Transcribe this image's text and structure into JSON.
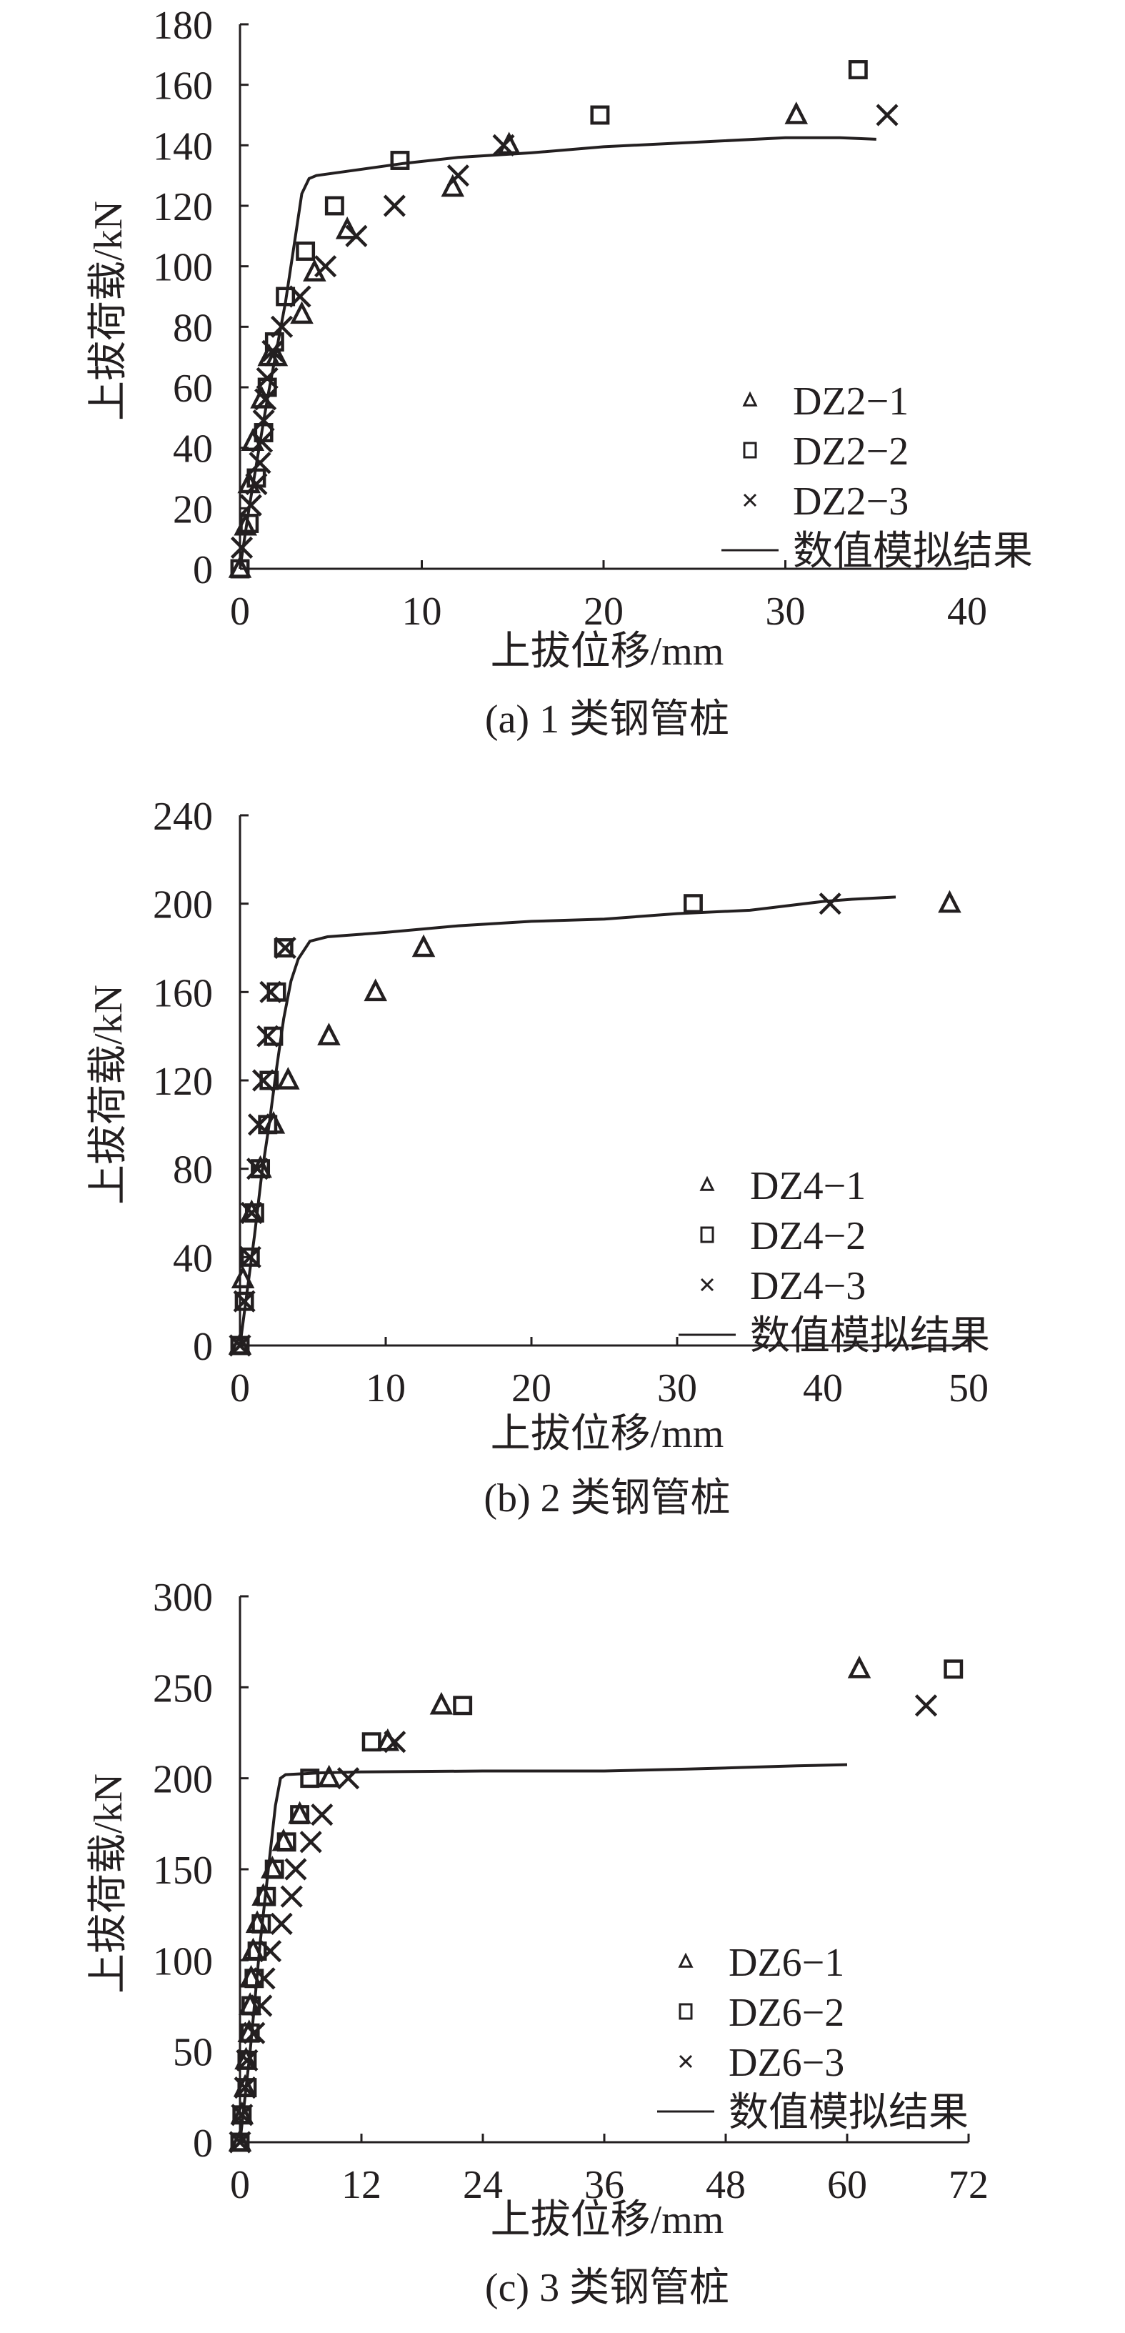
{
  "colors": {
    "ink": "#231f20",
    "background": "#ffffff"
  },
  "chart_data": [
    {
      "type": "scatter",
      "panel_label": "(a) 1 类钢管桩",
      "title": "",
      "xlabel": "上拔位移/mm",
      "ylabel": "上拔荷载/kN",
      "xlim": [
        0,
        40
      ],
      "ylim": [
        0,
        180
      ],
      "xticks": [
        0,
        10,
        20,
        30,
        40
      ],
      "yticks": [
        0,
        20,
        40,
        60,
        80,
        100,
        120,
        140,
        160,
        180
      ],
      "grid": false,
      "legend_position": "lower right",
      "series": [
        {
          "name": "DZ2-1",
          "marker": "triangle",
          "points": [
            [
              0,
              0
            ],
            [
              0.3,
              14
            ],
            [
              0.5,
              28
            ],
            [
              0.7,
              42
            ],
            [
              1.2,
              56
            ],
            [
              1.6,
              70
            ],
            [
              2.0,
              70
            ],
            [
              3.4,
              84
            ],
            [
              4.1,
              98
            ],
            [
              5.9,
              112
            ],
            [
              11.7,
              126
            ],
            [
              14.8,
              140
            ],
            [
              30.6,
              150
            ]
          ]
        },
        {
          "name": "DZ2-2",
          "marker": "square",
          "points": [
            [
              0,
              0
            ],
            [
              0.5,
              15
            ],
            [
              0.9,
              30
            ],
            [
              1.3,
              45
            ],
            [
              1.5,
              60
            ],
            [
              1.9,
              75
            ],
            [
              2.5,
              90
            ],
            [
              3.6,
              105
            ],
            [
              5.2,
              120
            ],
            [
              8.8,
              135
            ],
            [
              19.8,
              150
            ],
            [
              34.0,
              165
            ]
          ]
        },
        {
          "name": "DZ2-3",
          "marker": "x",
          "points": [
            [
              0.1,
              7
            ],
            [
              0.6,
              21
            ],
            [
              0.9,
              28
            ],
            [
              1.1,
              35
            ],
            [
              1.2,
              42
            ],
            [
              1.3,
              49
            ],
            [
              1.4,
              56
            ],
            [
              1.5,
              63
            ],
            [
              1.8,
              72
            ],
            [
              2.3,
              80
            ],
            [
              3.3,
              90
            ],
            [
              4.7,
              100
            ],
            [
              6.4,
              110
            ],
            [
              8.5,
              120
            ],
            [
              12.0,
              130
            ],
            [
              14.5,
              140
            ],
            [
              35.6,
              150
            ]
          ]
        },
        {
          "name": "数值模拟结果",
          "marker": "line",
          "points": [
            [
              0,
              0
            ],
            [
              0.5,
              20
            ],
            [
              1.0,
              38
            ],
            [
              1.5,
              56
            ],
            [
              2.0,
              72
            ],
            [
              2.5,
              88
            ],
            [
              3.0,
              108
            ],
            [
              3.4,
              124
            ],
            [
              3.8,
              129
            ],
            [
              4.2,
              130
            ],
            [
              6,
              131.5
            ],
            [
              9,
              134
            ],
            [
              12,
              136
            ],
            [
              16,
              137.5
            ],
            [
              20,
              139.5
            ],
            [
              25,
              141
            ],
            [
              30,
              142.5
            ],
            [
              33,
              142.5
            ],
            [
              35,
              142
            ]
          ]
        }
      ]
    },
    {
      "type": "scatter",
      "panel_label": "(b) 2 类钢管桩",
      "title": "",
      "xlabel": "上拔位移/mm",
      "ylabel": "上拔荷载/kN",
      "xlim": [
        0,
        50
      ],
      "ylim": [
        0,
        240
      ],
      "xticks": [
        0,
        10,
        20,
        30,
        40,
        50
      ],
      "yticks": [
        0,
        40,
        80,
        120,
        160,
        200,
        240
      ],
      "grid": false,
      "legend_position": "lower right",
      "series": [
        {
          "name": "DZ4-1",
          "marker": "triangle",
          "points": [
            [
              0,
              0
            ],
            [
              0.2,
              30
            ],
            [
              0.8,
              60
            ],
            [
              1.4,
              80
            ],
            [
              2.3,
              100
            ],
            [
              3.3,
              120
            ],
            [
              6.1,
              140
            ],
            [
              9.3,
              160
            ],
            [
              12.6,
              180
            ],
            [
              48.7,
              200
            ]
          ]
        },
        {
          "name": "DZ4-2",
          "marker": "square",
          "points": [
            [
              0,
              0
            ],
            [
              0.3,
              20
            ],
            [
              0.7,
              40
            ],
            [
              1.0,
              60
            ],
            [
              1.4,
              80
            ],
            [
              1.9,
              100
            ],
            [
              2.0,
              120
            ],
            [
              2.3,
              140
            ],
            [
              2.5,
              160
            ],
            [
              3.0,
              180
            ],
            [
              31.1,
              200
            ]
          ]
        },
        {
          "name": "DZ4-3",
          "marker": "x",
          "points": [
            [
              0,
              0
            ],
            [
              0.3,
              20
            ],
            [
              0.7,
              40
            ],
            [
              0.8,
              60
            ],
            [
              1.2,
              80
            ],
            [
              1.3,
              100
            ],
            [
              1.6,
              120
            ],
            [
              1.9,
              140
            ],
            [
              2.1,
              160
            ],
            [
              3.1,
              180
            ],
            [
              40.5,
              200
            ]
          ]
        },
        {
          "name": "数值模拟结果",
          "marker": "line",
          "points": [
            [
              0,
              0
            ],
            [
              0.5,
              25
            ],
            [
              1.0,
              50
            ],
            [
              1.5,
              78
            ],
            [
              2.0,
              100
            ],
            [
              2.5,
              125
            ],
            [
              3.0,
              148
            ],
            [
              3.5,
              165
            ],
            [
              4.0,
              175
            ],
            [
              4.8,
              183
            ],
            [
              6,
              185
            ],
            [
              10,
              187
            ],
            [
              15,
              190
            ],
            [
              20,
              192
            ],
            [
              25,
              193
            ],
            [
              30,
              195.5
            ],
            [
              35,
              197
            ],
            [
              40,
              201
            ],
            [
              42,
              202
            ],
            [
              45,
              203
            ]
          ]
        }
      ]
    },
    {
      "type": "scatter",
      "panel_label": "(c) 3 类钢管桩",
      "title": "",
      "xlabel": "上拔位移/mm",
      "ylabel": "上拔荷载/kN",
      "xlim": [
        0,
        72
      ],
      "ylim": [
        0,
        300
      ],
      "xticks": [
        0,
        12,
        24,
        36,
        48,
        60,
        72
      ],
      "yticks": [
        0,
        50,
        100,
        150,
        200,
        250,
        300
      ],
      "grid": false,
      "legend_position": "lower right",
      "series": [
        {
          "name": "DZ6-1",
          "marker": "triangle",
          "points": [
            [
              0,
              0
            ],
            [
              0.2,
              15
            ],
            [
              0.5,
              30
            ],
            [
              0.6,
              45
            ],
            [
              0.9,
              60
            ],
            [
              1.0,
              75
            ],
            [
              1.1,
              90
            ],
            [
              1.3,
              105
            ],
            [
              1.7,
              120
            ],
            [
              2.3,
              135
            ],
            [
              3.2,
              150
            ],
            [
              4.3,
              165
            ],
            [
              5.9,
              180
            ],
            [
              8.8,
              200
            ],
            [
              14.6,
              220
            ],
            [
              19.9,
              240
            ],
            [
              61.2,
              260
            ]
          ]
        },
        {
          "name": "DZ6-2",
          "marker": "square",
          "points": [
            [
              0,
              0
            ],
            [
              0.2,
              15
            ],
            [
              0.7,
              30
            ],
            [
              0.7,
              45
            ],
            [
              1.0,
              60
            ],
            [
              1.1,
              75
            ],
            [
              1.4,
              90
            ],
            [
              1.7,
              105
            ],
            [
              2.1,
              120
            ],
            [
              2.6,
              135
            ],
            [
              3.4,
              150
            ],
            [
              4.6,
              165
            ],
            [
              5.9,
              180
            ],
            [
              6.9,
              200
            ],
            [
              13.0,
              220
            ],
            [
              22.0,
              240
            ],
            [
              70.5,
              260
            ]
          ]
        },
        {
          "name": "DZ6-3",
          "marker": "x",
          "points": [
            [
              0,
              0
            ],
            [
              0.2,
              15
            ],
            [
              0.5,
              30
            ],
            [
              0.7,
              45
            ],
            [
              1.4,
              60
            ],
            [
              2.1,
              75
            ],
            [
              2.4,
              90
            ],
            [
              3.0,
              105
            ],
            [
              4.1,
              120
            ],
            [
              5.1,
              135
            ],
            [
              5.5,
              150
            ],
            [
              7.0,
              165
            ],
            [
              8.1,
              180
            ],
            [
              10.7,
              200
            ],
            [
              15.3,
              220
            ],
            [
              67.8,
              240
            ]
          ]
        },
        {
          "name": "数值模拟结果",
          "marker": "line",
          "points": [
            [
              0,
              0
            ],
            [
              0.5,
              25
            ],
            [
              1.0,
              50
            ],
            [
              1.5,
              80
            ],
            [
              2.0,
              110
            ],
            [
              2.5,
              135
            ],
            [
              3.0,
              160
            ],
            [
              3.5,
              185
            ],
            [
              4.0,
              200
            ],
            [
              4.5,
              202
            ],
            [
              8,
              203
            ],
            [
              12,
              203.5
            ],
            [
              24,
              204
            ],
            [
              36,
              204
            ],
            [
              44,
              205
            ],
            [
              50,
              206
            ],
            [
              55,
              206.8
            ],
            [
              60,
              207.5
            ]
          ]
        }
      ]
    }
  ]
}
